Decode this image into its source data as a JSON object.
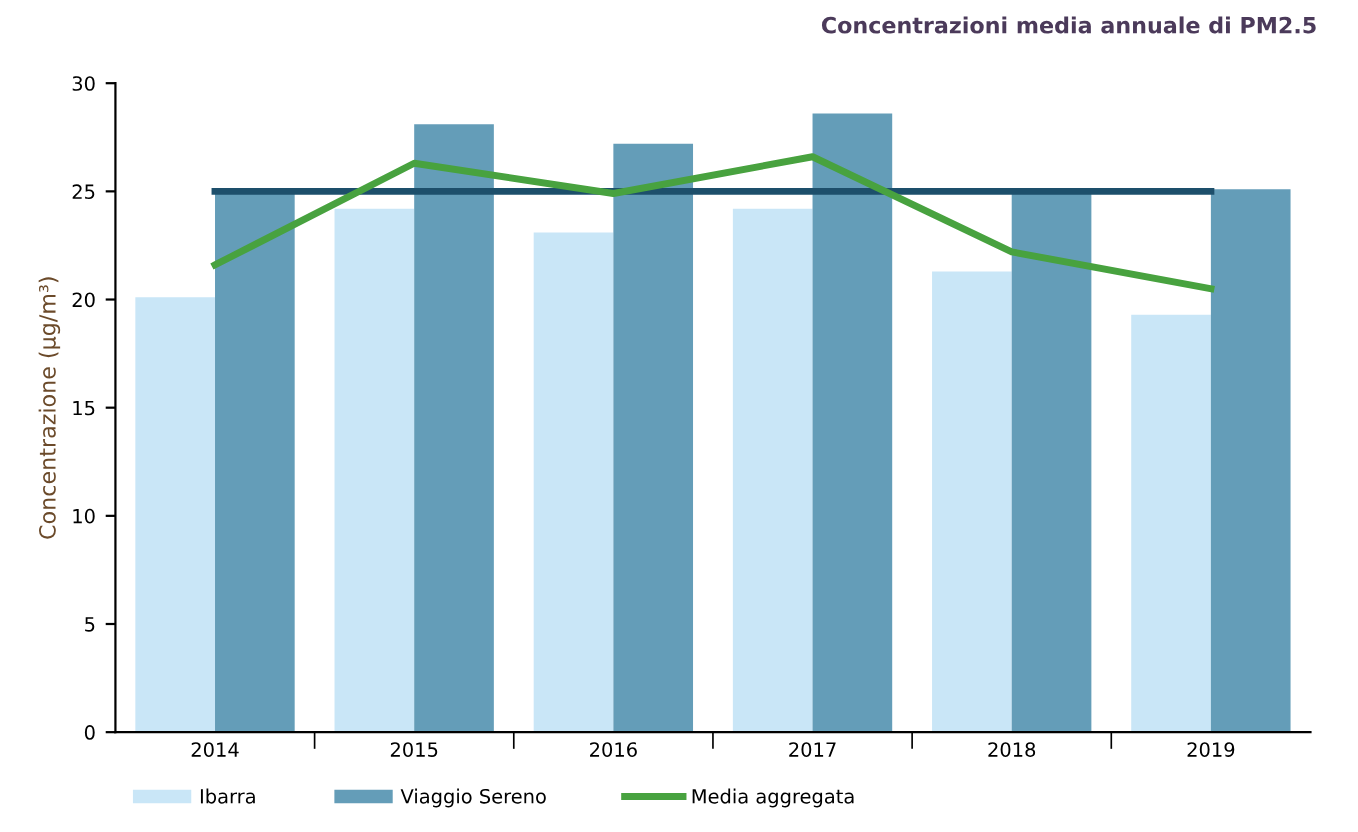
{
  "chart_data": {
    "type": "bar",
    "title": "Concentrazioni media annuale di PM2.5",
    "ylabel": "Concentrazione (µg/m³)",
    "categories": [
      "2014",
      "2015",
      "2016",
      "2017",
      "2018",
      "2019"
    ],
    "series": [
      {
        "name": "Ibarra",
        "color": "#c9e6f7",
        "values": [
          20.1,
          24.2,
          23.1,
          24.2,
          21.3,
          19.3
        ]
      },
      {
        "name": "Viaggio Sereno",
        "color": "#649db8",
        "values": [
          25.0,
          28.1,
          27.2,
          28.6,
          25.1,
          25.1
        ]
      },
      {
        "name": "Media aggregata",
        "type": "line",
        "color": "#48a23f",
        "values": [
          21.6,
          26.3,
          24.9,
          26.6,
          22.2,
          20.5
        ]
      }
    ],
    "ref_lines": [
      {
        "axis": "y",
        "value": 25,
        "color": "#1d4f6b"
      }
    ],
    "ylim": [
      0,
      30
    ],
    "yticks": [
      0,
      5,
      10,
      15,
      20,
      25,
      30
    ],
    "grid": false,
    "legend": "bottom",
    "marker": "none",
    "line_style": "solid"
  }
}
